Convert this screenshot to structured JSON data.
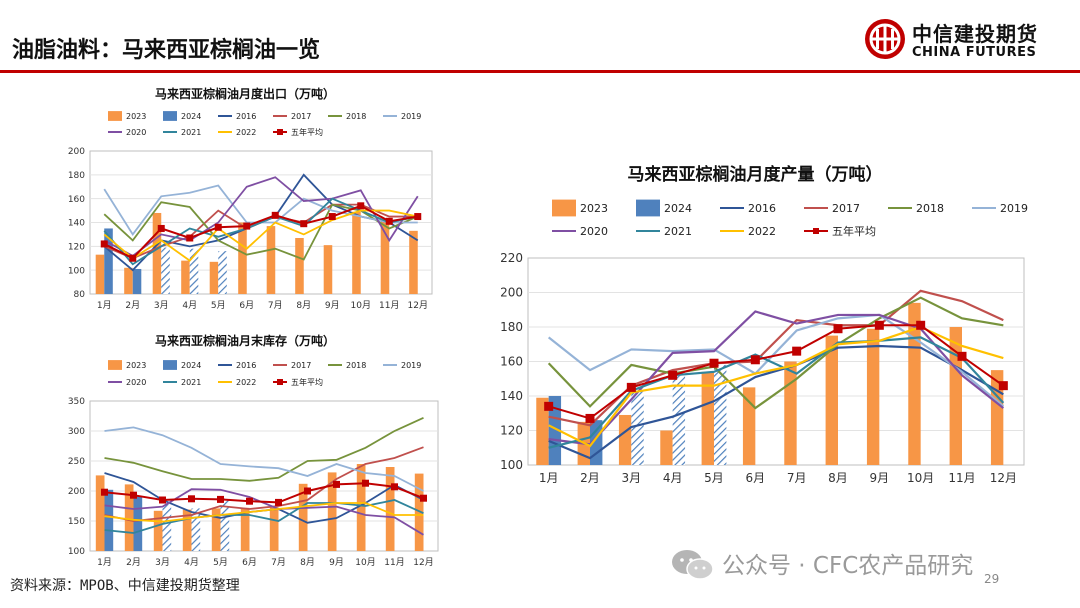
{
  "page": {
    "title": "油脂油料：马来西亚棕榈油一览",
    "logo_cn": "中信建投期货",
    "logo_en": "CHINA FUTURES",
    "source": "资料来源：MPOB、中信建投期货整理",
    "watermark": "公众号 · CFC农产品研究",
    "page_number": "29"
  },
  "colors": {
    "y2023": "#f79646",
    "y2024": "#4f81bd",
    "y2016": "#2f5597",
    "y2017": "#c0504d",
    "y2018": "#77933c",
    "y2019": "#95b3d7",
    "y2020": "#7f4fa3",
    "y2021": "#31859c",
    "y2022": "#ffc000",
    "avg": "#c00000",
    "accent": "#c00000"
  },
  "chart_data": [
    {
      "id": "exports",
      "type": "bar+line",
      "title": "马来西亚棕榈油月度出口（万吨）",
      "categories": [
        "1月",
        "2月",
        "3月",
        "4月",
        "5月",
        "6月",
        "7月",
        "8月",
        "9月",
        "10月",
        "11月",
        "12月"
      ],
      "ylim": [
        80,
        200
      ],
      "yticks": [
        80,
        100,
        120,
        140,
        160,
        180,
        200
      ],
      "bars": [
        {
          "name": "2023",
          "values": [
            113,
            102,
            148,
            108,
            107,
            140,
            137,
            127,
            121,
            149,
            143,
            133
          ],
          "estimated_months": []
        },
        {
          "name": "2024",
          "values": [
            135,
            101,
            119,
            118,
            116
          ],
          "estimated_months": [
            "3月",
            "4月",
            "5月"
          ]
        }
      ],
      "lines": [
        {
          "name": "2016",
          "values": [
            120,
            100,
            125,
            120,
            125,
            135,
            145,
            180,
            155,
            145,
            140,
            125
          ]
        },
        {
          "name": "2017",
          "values": [
            120,
            110,
            120,
            128,
            150,
            135,
            145,
            140,
            155,
            155,
            145,
            145
          ]
        },
        {
          "name": "2018",
          "values": [
            147,
            125,
            157,
            153,
            125,
            113,
            118,
            109,
            155,
            150,
            135,
            145
          ]
        },
        {
          "name": "2019",
          "values": [
            168,
            130,
            162,
            165,
            171,
            140,
            140,
            160,
            150,
            145,
            140,
            140
          ]
        },
        {
          "name": "2020",
          "values": [
            125,
            112,
            130,
            125,
            140,
            170,
            178,
            158,
            160,
            167,
            125,
            162
          ]
        },
        {
          "name": "2021",
          "values": [
            133,
            105,
            120,
            135,
            128,
            135,
            145,
            137,
            160,
            150,
            140,
            145
          ]
        },
        {
          "name": "2022",
          "values": [
            130,
            110,
            125,
            108,
            135,
            118,
            140,
            130,
            142,
            150,
            150,
            145
          ]
        },
        {
          "name": "五年平均",
          "values": [
            122,
            110,
            135,
            127,
            136,
            137,
            146,
            139,
            145,
            154,
            141,
            145
          ]
        }
      ],
      "legend_order": [
        "2023",
        "2024",
        "2016",
        "2017",
        "2018",
        "2019",
        "2020",
        "2021",
        "2022",
        "五年平均"
      ]
    },
    {
      "id": "stocks",
      "type": "bar+line",
      "title": "马来西亚棕榈油月末库存（万吨）",
      "categories": [
        "1月",
        "2月",
        "3月",
        "4月",
        "5月",
        "6月",
        "7月",
        "8月",
        "9月",
        "10月",
        "11月",
        "12月"
      ],
      "ylim": [
        100,
        350
      ],
      "yticks": [
        100,
        150,
        200,
        250,
        300,
        350
      ],
      "bars": [
        {
          "name": "2023",
          "values": [
            226,
            211,
            167,
            169,
            171,
            172,
            173,
            212,
            231,
            245,
            240,
            229
          ],
          "estimated_months": []
        },
        {
          "name": "2024",
          "values": [
            202,
            192,
            178,
            171,
            188
          ],
          "estimated_months": [
            "3月",
            "4月",
            "5月"
          ]
        }
      ],
      "lines": [
        {
          "name": "2016",
          "values": [
            230,
            215,
            185,
            165,
            155,
            165,
            170,
            147,
            155,
            180,
            210,
            185
          ]
        },
        {
          "name": "2017",
          "values": [
            160,
            150,
            155,
            160,
            175,
            170,
            175,
            185,
            220,
            245,
            255,
            273
          ]
        },
        {
          "name": "2018",
          "values": [
            255,
            247,
            233,
            220,
            220,
            217,
            222,
            250,
            252,
            272,
            300,
            322
          ]
        },
        {
          "name": "2019",
          "values": [
            300,
            306,
            293,
            272,
            245,
            241,
            238,
            225,
            245,
            230,
            225,
            200
          ]
        },
        {
          "name": "2020",
          "values": [
            176,
            170,
            174,
            203,
            202,
            190,
            170,
            172,
            174,
            160,
            156,
            127
          ]
        },
        {
          "name": "2021",
          "values": [
            135,
            130,
            145,
            155,
            160,
            160,
            150,
            180,
            180,
            175,
            185,
            163
          ]
        },
        {
          "name": "2022",
          "values": [
            158,
            152,
            149,
            155,
            160,
            165,
            170,
            175,
            180,
            180,
            160,
            160
          ]
        },
        {
          "name": "五年平均",
          "values": [
            198,
            193,
            185,
            187,
            186,
            183,
            181,
            200,
            211,
            213,
            207,
            188
          ]
        }
      ],
      "legend_order": [
        "2023",
        "2024",
        "2016",
        "2017",
        "2018",
        "2019",
        "2020",
        "2021",
        "2022",
        "五年平均"
      ]
    },
    {
      "id": "production",
      "type": "bar+line",
      "title": "马来西亚棕榈油月度产量（万吨）",
      "categories": [
        "1月",
        "2月",
        "3月",
        "4月",
        "5月",
        "6月",
        "7月",
        "8月",
        "9月",
        "10月",
        "11月",
        "12月"
      ],
      "ylim": [
        100,
        220
      ],
      "yticks": [
        100,
        120,
        140,
        160,
        180,
        200,
        220
      ],
      "bars": [
        {
          "name": "2023",
          "values": [
            139,
            125,
            129,
            120,
            154,
            145,
            160,
            175,
            179,
            194,
            180,
            155
          ],
          "estimated_months": []
        },
        {
          "name": "2024",
          "values": [
            140,
            126,
            143,
            153,
            158
          ],
          "estimated_months": [
            "3月",
            "4月",
            "5月"
          ]
        }
      ],
      "lines": [
        {
          "name": "2016",
          "values": [
            114,
            104,
            122,
            128,
            137,
            151,
            158,
            168,
            169,
            168,
            155,
            141
          ]
        },
        {
          "name": "2017",
          "values": [
            128,
            123,
            146,
            155,
            159,
            160,
            184,
            181,
            181,
            201,
            195,
            184
          ]
        },
        {
          "name": "2018",
          "values": [
            159,
            134,
            158,
            153,
            157,
            133,
            150,
            170,
            185,
            197,
            185,
            181
          ]
        },
        {
          "name": "2019",
          "values": [
            174,
            155,
            167,
            166,
            167,
            153,
            178,
            185,
            187,
            171,
            154,
            134
          ]
        },
        {
          "name": "2020",
          "values": [
            115,
            112,
            138,
            165,
            166,
            189,
            182,
            187,
            187,
            179,
            152,
            133
          ]
        },
        {
          "name": "2021",
          "values": [
            110,
            116,
            143,
            152,
            154,
            164,
            153,
            171,
            172,
            174,
            162,
            136
          ]
        },
        {
          "name": "2022",
          "values": [
            123,
            111,
            142,
            146,
            146,
            153,
            158,
            170,
            172,
            180,
            169,
            162
          ]
        },
        {
          "name": "五年平均",
          "values": [
            134,
            127,
            145,
            152,
            159,
            161,
            166,
            179,
            181,
            181,
            163,
            146
          ]
        }
      ],
      "legend_order": [
        "2023",
        "2024",
        "2016",
        "2017",
        "2018",
        "2019",
        "2020",
        "2021",
        "2022",
        "五年平均"
      ]
    }
  ]
}
